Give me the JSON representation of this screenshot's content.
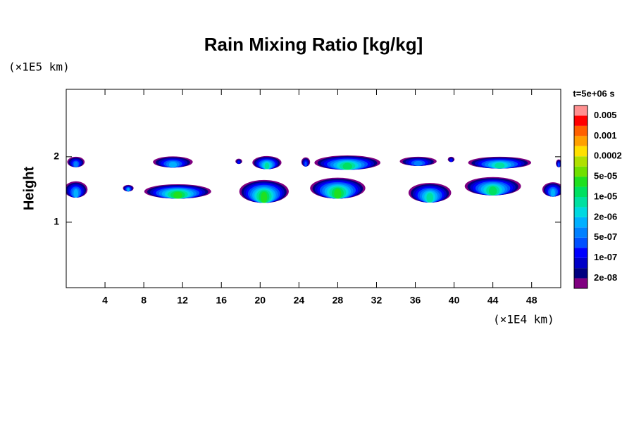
{
  "chart_data": {
    "type": "contour",
    "title": "Rain Mixing Ratio [kg/kg]",
    "y_label": "Height",
    "y_unit": "(×1E5 km)",
    "x_unit": "(×1E4 km)",
    "time_label": "t=5e+06 s",
    "xlim": [
      0,
      51
    ],
    "ylim": [
      0,
      3.03
    ],
    "xticks": [
      4,
      8,
      12,
      16,
      20,
      24,
      28,
      32,
      36,
      40,
      44,
      48
    ],
    "yticks": [
      1,
      2
    ],
    "colorbar": {
      "colors": [
        "#800080",
        "#000080",
        "#0000c8",
        "#0000ff",
        "#0050ff",
        "#0080ff",
        "#00b0ff",
        "#00d8e0",
        "#00e0a0",
        "#00e060",
        "#20e020",
        "#70e000",
        "#b0e000",
        "#ffe000",
        "#ffa000",
        "#ff6000",
        "#ff0000",
        "#ff9090"
      ],
      "levels": [
        {
          "value": 2e-08,
          "label": "2e-08"
        },
        {
          "value": 1e-07,
          "label": "1e-07"
        },
        {
          "value": 5e-07,
          "label": "5e-07"
        },
        {
          "value": 2e-06,
          "label": "2e-06"
        },
        {
          "value": 1e-05,
          "label": "1e-05"
        },
        {
          "value": 5e-05,
          "label": "5e-05"
        },
        {
          "value": 0.0002,
          "label": "0.0002"
        },
        {
          "value": 0.001,
          "label": "0.001"
        },
        {
          "value": 0.005,
          "label": "0.005"
        }
      ]
    },
    "blobs": [
      {
        "x": 1.0,
        "y": 1.92,
        "width": 1.8,
        "height": 0.16,
        "level": 5
      },
      {
        "x": 11.0,
        "y": 1.92,
        "width": 4.1,
        "height": 0.17,
        "level": 6
      },
      {
        "x": 17.8,
        "y": 1.93,
        "width": 0.7,
        "height": 0.08,
        "level": 3
      },
      {
        "x": 20.7,
        "y": 1.91,
        "width": 3.0,
        "height": 0.2,
        "level": 8
      },
      {
        "x": 24.7,
        "y": 1.92,
        "width": 0.9,
        "height": 0.14,
        "level": 4
      },
      {
        "x": 29.0,
        "y": 1.91,
        "width": 6.8,
        "height": 0.22,
        "level": 9
      },
      {
        "x": 36.3,
        "y": 1.93,
        "width": 3.8,
        "height": 0.14,
        "level": 5
      },
      {
        "x": 39.7,
        "y": 1.96,
        "width": 0.7,
        "height": 0.08,
        "level": 3
      },
      {
        "x": 44.7,
        "y": 1.91,
        "width": 6.5,
        "height": 0.18,
        "level": 8
      },
      {
        "x": 50.8,
        "y": 1.9,
        "width": 0.6,
        "height": 0.12,
        "level": 4
      },
      {
        "x": 1.0,
        "y": 1.5,
        "width": 2.4,
        "height": 0.25,
        "level": 6
      },
      {
        "x": 6.4,
        "y": 1.52,
        "width": 1.1,
        "height": 0.1,
        "level": 6
      },
      {
        "x": 11.5,
        "y": 1.47,
        "width": 6.9,
        "height": 0.22,
        "level": 10
      },
      {
        "x": 20.4,
        "y": 1.47,
        "width": 5.1,
        "height": 0.35,
        "level": 10
      },
      {
        "x": 28.0,
        "y": 1.52,
        "width": 5.7,
        "height": 0.32,
        "level": 10
      },
      {
        "x": 37.5,
        "y": 1.45,
        "width": 4.4,
        "height": 0.3,
        "level": 8
      },
      {
        "x": 44.0,
        "y": 1.55,
        "width": 5.8,
        "height": 0.28,
        "level": 9
      },
      {
        "x": 50.2,
        "y": 1.5,
        "width": 2.2,
        "height": 0.22,
        "level": 6
      }
    ]
  }
}
